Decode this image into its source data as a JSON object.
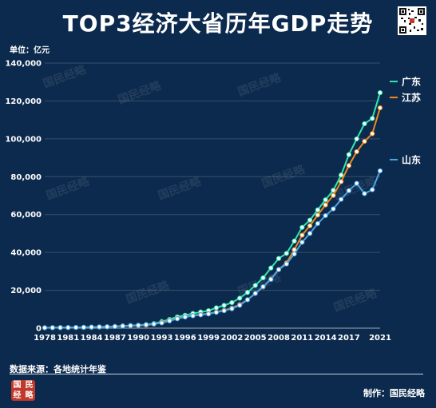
{
  "title": "TOP3经济大省历年GDP走势",
  "unit_label": "单位：亿元",
  "source_label": "数据来源：各地统计年鉴",
  "credit_label": "制作：国民经略",
  "watermark": "国民经略",
  "seal_chars": [
    "国",
    "经",
    "民",
    "略"
  ],
  "chart_data": {
    "type": "line",
    "title": "TOP3经济大省历年GDP走势",
    "ylabel": "单位：亿元",
    "xlabel": "",
    "ylim": [
      0,
      140000
    ],
    "yticks": [
      0,
      20000,
      40000,
      60000,
      80000,
      100000,
      120000,
      140000
    ],
    "ytick_labels": [
      "0",
      "20,000",
      "40,000",
      "60,000",
      "80,000",
      "100,000",
      "120,000",
      "140,000"
    ],
    "xlim": [
      1978,
      2021
    ],
    "xtick_labels": [
      "1978",
      "1981",
      "1984",
      "1987",
      "1990",
      "1993",
      "1996",
      "1999",
      "2002",
      "2005",
      "2008",
      "2011",
      "2014",
      "2017",
      "2021"
    ],
    "grid": true,
    "legend": "right, at line ends",
    "x": [
      1978,
      1979,
      1980,
      1981,
      1982,
      1983,
      1984,
      1985,
      1986,
      1987,
      1988,
      1989,
      1990,
      1991,
      1992,
      1993,
      1994,
      1995,
      1996,
      1997,
      1998,
      1999,
      2000,
      2001,
      2002,
      2003,
      2004,
      2005,
      2006,
      2007,
      2008,
      2009,
      2010,
      2011,
      2012,
      2013,
      2014,
      2015,
      2016,
      2017,
      2018,
      2019,
      2020,
      2021
    ],
    "series": [
      {
        "name": "广东",
        "color": "#2ee8b0",
        "values": [
          186,
          209,
          250,
          290,
          340,
          368,
          458,
          577,
          667,
          847,
          1155,
          1381,
          1559,
          1893,
          2448,
          3469,
          4619,
          5934,
          6835,
          7775,
          8531,
          9251,
          10741,
          12039,
          13502,
          15845,
          18865,
          22557,
          26588,
          31777,
          36797,
          39483,
          46013,
          53210,
          57068,
          62475,
          67810,
          72813,
          80855,
          91649,
          99945,
          107987,
          110761,
          124370
        ]
      },
      {
        "name": "江苏",
        "color": "#f08a1c",
        "values": [
          249,
          298,
          320,
          350,
          390,
          438,
          518,
          652,
          744,
          922,
          1209,
          1322,
          1417,
          1601,
          2136,
          2998,
          4057,
          5155,
          6004,
          6680,
          7200,
          7698,
          8554,
          9456,
          10606,
          12443,
          15004,
          18306,
          21742,
          26018,
          30982,
          34457,
          41425,
          49110,
          54058,
          59753,
          65088,
          70116,
          77388,
          85870,
          93208,
          98656,
          102719,
          116364
        ]
      },
      {
        "name": "山东",
        "color": "#4aa5e6",
        "values": [
          225,
          251,
          292,
          346,
          395,
          459,
          581,
          681,
          742,
          892,
          1117,
          1294,
          1511,
          1810,
          2196,
          2770,
          3844,
          4953,
          5883,
          6537,
          7021,
          7493,
          8337,
          9195,
          10275,
          12078,
          15021,
          18366,
          21900,
          25777,
          30933,
          33896,
          39170,
          45362,
          50013,
          55230,
          59427,
          63002,
          68024,
          72634,
          76470,
          71067,
          73129,
          83096
        ]
      }
    ]
  }
}
